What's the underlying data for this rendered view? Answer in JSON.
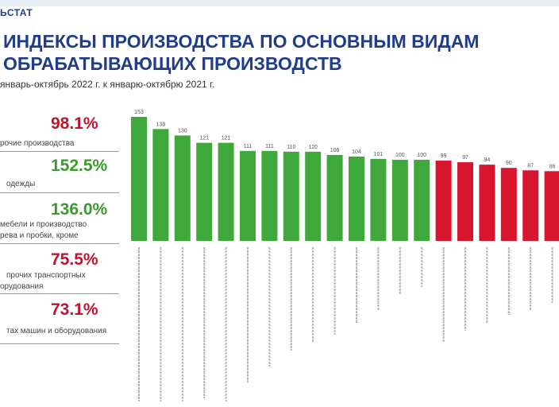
{
  "header": {
    "brand": "ЬСТАТ",
    "title_line1": "ИНДЕКСЫ ПРОИЗВОДСТВА ПО ОСНОВНЫМ ВИДАМ",
    "title_line2": "ОБРАБАТЫВАЮЩИХ ПРОИЗВОДСТВ",
    "subtitle": "январь-октябрь 2022 г. к январю-октябрю 2021 г."
  },
  "kpis": [
    {
      "value": "98.1%",
      "label_lines": [
        "рочие производства"
      ],
      "color": "#c0142d"
    },
    {
      "value": "152.5%",
      "label_lines": [
        "одежды"
      ],
      "color": "#3a9a2e"
    },
    {
      "value": "136.0%",
      "label_lines": [
        "мебели и производство",
        "рева и пробки, кроме"
      ],
      "color": "#3a9a2e"
    },
    {
      "value": "75.5%",
      "label_lines": [
        "прочих транспортных",
        "орудования"
      ],
      "color": "#c0142d"
    },
    {
      "value": "73.1%",
      "label_lines": [
        "тах машин и оборудования"
      ],
      "color": "#c0142d"
    }
  ],
  "colors": {
    "above": "#3fa83a",
    "below": "#d8152f",
    "title": "#1f3d8a"
  },
  "chart_data": {
    "type": "bar",
    "values": [
      153,
      138,
      130,
      121,
      121,
      111,
      111,
      110,
      110,
      106,
      104,
      101,
      100,
      100,
      99,
      97,
      94,
      90,
      87,
      86
    ],
    "data_labels": [
      "153",
      "138",
      "130",
      "121",
      "121",
      "111",
      "111",
      "110",
      "110",
      "106",
      "104",
      "101",
      "100",
      "100",
      "99",
      "97",
      "94",
      "90",
      "87",
      "86"
    ],
    "ylim": [
      0,
      160
    ],
    "threshold": 100,
    "grid": false
  }
}
